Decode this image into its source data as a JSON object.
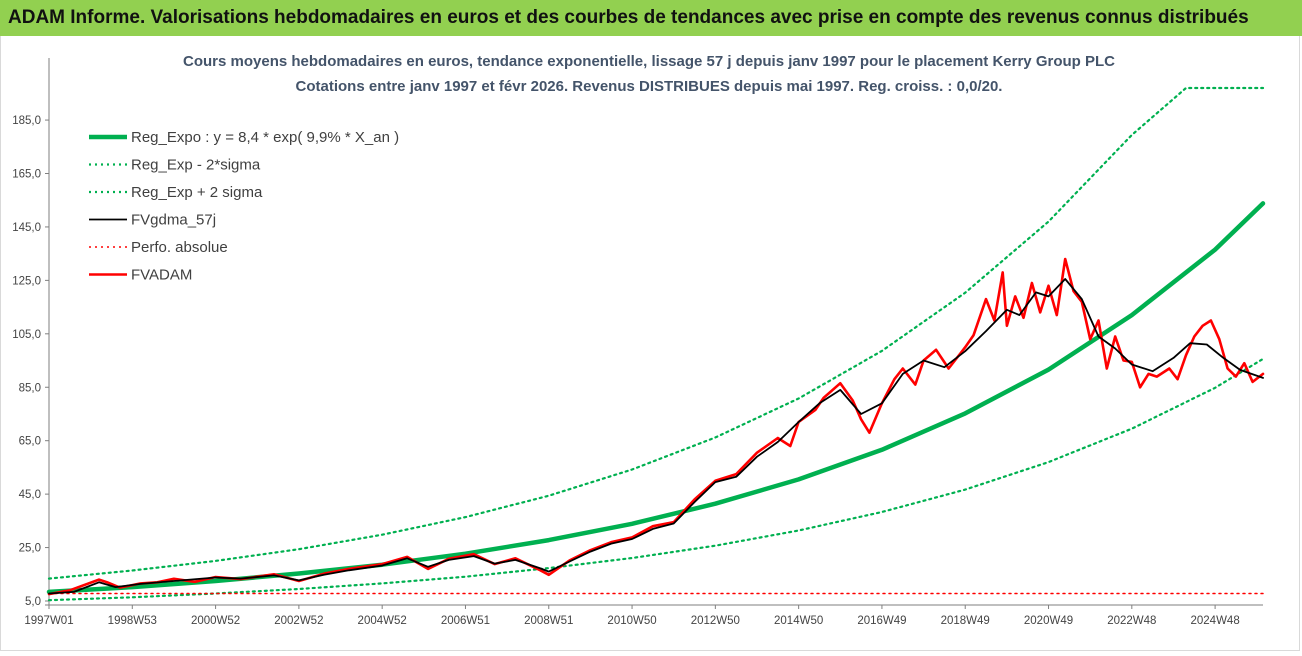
{
  "header": {
    "title": "ADAM Informe. Valorisations hebdomadaires en euros et des courbes de tendances avec prise en compte des revenus connus distribués"
  },
  "colors": {
    "banner_bg": "#92d050",
    "reg_expo": "#00b050",
    "fvgdma": "#000000",
    "fvadam": "#ff0000",
    "perfo": "#ff0000",
    "title_text": "#44546a"
  },
  "chart_data": {
    "type": "line",
    "title": [
      "Cours moyens hebdomadaires en euros, tendance exponentielle, lissage 57 j depuis janv 1997 pour le placement Kerry Group PLC",
      "Cotations entre janv 1997 et févr 2026. Revenus DISTRIBUES depuis mai 1997. Reg. croiss. : 0,0/20."
    ],
    "xlabel": "",
    "ylabel": "",
    "x_range": [
      1997.0,
      2026.15
    ],
    "ylim": [
      5,
      197
    ],
    "y_ticks": [
      "5,0",
      "25,0",
      "45,0",
      "65,0",
      "85,0",
      "105,0",
      "125,0",
      "145,0",
      "165,0",
      "185,0"
    ],
    "y_tick_values": [
      5,
      25,
      45,
      65,
      85,
      105,
      125,
      145,
      165,
      185
    ],
    "x_ticks": [
      {
        "label": "1997W01",
        "x": 1997.0
      },
      {
        "label": "1998W53",
        "x": 1999.0
      },
      {
        "label": "2000W52",
        "x": 2001.0
      },
      {
        "label": "2002W52",
        "x": 2003.0
      },
      {
        "label": "2004W52",
        "x": 2005.0
      },
      {
        "label": "2006W51",
        "x": 2007.0
      },
      {
        "label": "2008W51",
        "x": 2009.0
      },
      {
        "label": "2010W50",
        "x": 2011.0
      },
      {
        "label": "2012W50",
        "x": 2013.0
      },
      {
        "label": "2014W50",
        "x": 2015.0
      },
      {
        "label": "2016W49",
        "x": 2017.0
      },
      {
        "label": "2018W49",
        "x": 2019.0
      },
      {
        "label": "2020W49",
        "x": 2021.0
      },
      {
        "label": "2022W48",
        "x": 2023.0
      },
      {
        "label": "2024W48",
        "x": 2025.0
      }
    ],
    "grid": false,
    "legend_position": "top-left",
    "series": [
      {
        "name": "Reg_Expo : y = 8,4 * exp( 9,9% *  X_an )",
        "style": "thick-solid",
        "color": "#00b050",
        "x": [
          1997.0,
          1999.0,
          2001.0,
          2003.0,
          2005.0,
          2007.0,
          2009.0,
          2011.0,
          2013.0,
          2015.0,
          2017.0,
          2019.0,
          2021.0,
          2023.0,
          2025.0,
          2026.15
        ],
        "y": [
          8.4,
          10.2,
          12.5,
          15.3,
          18.6,
          22.7,
          27.8,
          33.9,
          41.4,
          50.5,
          61.6,
          75.2,
          91.6,
          112.0,
          136.5,
          153.8
        ]
      },
      {
        "name": "Reg_Exp - 2*sigma",
        "style": "dotted",
        "color": "#00b050",
        "x": [
          1997.0,
          1999.0,
          2001.0,
          2003.0,
          2005.0,
          2007.0,
          2009.0,
          2011.0,
          2013.0,
          2015.0,
          2017.0,
          2019.0,
          2021.0,
          2023.0,
          2025.0,
          2026.15
        ],
        "y": [
          5.3,
          6.4,
          7.8,
          9.5,
          11.6,
          14.1,
          17.3,
          21.1,
          25.7,
          31.4,
          38.3,
          46.7,
          57.0,
          69.5,
          84.8,
          95.6
        ]
      },
      {
        "name": "Reg_Exp + 2 sigma",
        "style": "dotted",
        "color": "#00b050",
        "x": [
          1997.0,
          1999.0,
          2001.0,
          2003.0,
          2005.0,
          2007.0,
          2009.0,
          2011.0,
          2013.0,
          2015.0,
          2017.0,
          2019.0,
          2021.0,
          2023.0,
          2024.3,
          2026.15
        ],
        "y": [
          13.4,
          16.4,
          20.0,
          24.4,
          29.8,
          36.4,
          44.4,
          54.2,
          66.2,
          80.8,
          98.6,
          120.4,
          147.0,
          179.4,
          197.0,
          197.0
        ]
      },
      {
        "name": "FVgdma_57j",
        "style": "solid",
        "color": "#000000",
        "x": [
          1997.0,
          1997.6,
          1998.2,
          1998.6,
          1999.2,
          2000.0,
          2001.0,
          2001.6,
          2002.4,
          2003.0,
          2003.6,
          2004.2,
          2005.0,
          2005.6,
          2006.1,
          2006.6,
          2007.2,
          2007.7,
          2008.2,
          2008.8,
          2009.0,
          2009.5,
          2010.0,
          2010.5,
          2011.0,
          2011.5,
          2012.0,
          2012.5,
          2013.0,
          2013.5,
          2014.0,
          2014.5,
          2015.0,
          2015.5,
          2016.0,
          2016.5,
          2017.0,
          2017.5,
          2018.0,
          2018.5,
          2019.0,
          2019.5,
          2020.0,
          2020.3,
          2020.7,
          2021.0,
          2021.4,
          2021.8,
          2022.2,
          2022.6,
          2023.0,
          2023.5,
          2024.0,
          2024.4,
          2024.8,
          2025.2,
          2025.6,
          2026.15
        ],
        "y": [
          7.8,
          8.4,
          12.0,
          10.2,
          11.4,
          12.5,
          13.8,
          13.4,
          14.6,
          12.7,
          14.8,
          16.5,
          18.3,
          21.0,
          17.8,
          20.4,
          21.8,
          19.0,
          20.4,
          17.2,
          16.0,
          19.8,
          23.5,
          26.5,
          28.2,
          32.0,
          34.0,
          42.0,
          49.5,
          51.5,
          59.0,
          64.5,
          72.0,
          79.0,
          84.0,
          75.0,
          79.0,
          90.0,
          95.0,
          92.5,
          98.5,
          106.0,
          114.0,
          112.0,
          120.5,
          119.0,
          125.5,
          118.0,
          104.0,
          99.5,
          93.5,
          91.0,
          96.0,
          101.5,
          101.0,
          96.0,
          91.5,
          88.5
        ]
      },
      {
        "name": "Perfo. absolue",
        "style": "dotted",
        "color": "#ff0000",
        "x": [
          1997.0,
          2026.15
        ],
        "y": [
          7.8,
          7.8
        ]
      },
      {
        "name": "FVADAM",
        "style": "thick-solid",
        "color": "#ff0000",
        "x": [
          1997.0,
          1997.5,
          1998.2,
          1998.4,
          1998.7,
          1999.2,
          1999.6,
          2000.0,
          2000.5,
          2001.0,
          2001.6,
          2002.4,
          2003.0,
          2003.6,
          2004.2,
          2005.0,
          2005.6,
          2006.1,
          2006.6,
          2007.2,
          2007.7,
          2008.2,
          2008.8,
          2009.0,
          2009.5,
          2010.0,
          2010.5,
          2011.0,
          2011.5,
          2012.0,
          2012.5,
          2013.0,
          2013.5,
          2014.0,
          2014.5,
          2014.8,
          2015.0,
          2015.4,
          2015.6,
          2016.0,
          2016.3,
          2016.5,
          2016.7,
          2017.0,
          2017.3,
          2017.5,
          2017.8,
          2018.0,
          2018.3,
          2018.6,
          2018.9,
          2019.0,
          2019.2,
          2019.5,
          2019.7,
          2019.9,
          2020.0,
          2020.2,
          2020.4,
          2020.6,
          2020.8,
          2021.0,
          2021.2,
          2021.4,
          2021.6,
          2021.8,
          2022.0,
          2022.2,
          2022.4,
          2022.6,
          2022.8,
          2023.0,
          2023.2,
          2023.4,
          2023.6,
          2023.9,
          2024.1,
          2024.3,
          2024.5,
          2024.7,
          2024.9,
          2025.1,
          2025.3,
          2025.5,
          2025.7,
          2025.9,
          2026.15
        ],
        "y": [
          7.6,
          9.0,
          13.0,
          12.0,
          10.0,
          11.6,
          12.0,
          13.3,
          12.2,
          14.0,
          13.2,
          15.0,
          12.5,
          15.2,
          17.0,
          18.8,
          21.5,
          17.0,
          20.8,
          22.5,
          18.8,
          21.0,
          16.5,
          14.8,
          20.2,
          24.0,
          27.0,
          28.8,
          33.0,
          34.5,
          43.0,
          50.0,
          52.5,
          60.5,
          66.0,
          63.0,
          72.0,
          76.5,
          81.0,
          86.5,
          80.0,
          73.0,
          68.0,
          79.0,
          88.0,
          92.0,
          86.0,
          95.0,
          99.0,
          92.0,
          98.0,
          100.0,
          104.5,
          118.0,
          110.0,
          128.0,
          108.0,
          119.0,
          111.0,
          124.0,
          113.0,
          123.0,
          112.0,
          133.0,
          121.0,
          117.0,
          103.0,
          110.0,
          92.0,
          104.0,
          95.0,
          94.5,
          85.0,
          90.0,
          89.0,
          92.0,
          88.0,
          97.0,
          104.0,
          108.0,
          110.0,
          103.0,
          92.0,
          89.0,
          94.0,
          87.0,
          90.0
        ]
      }
    ]
  }
}
